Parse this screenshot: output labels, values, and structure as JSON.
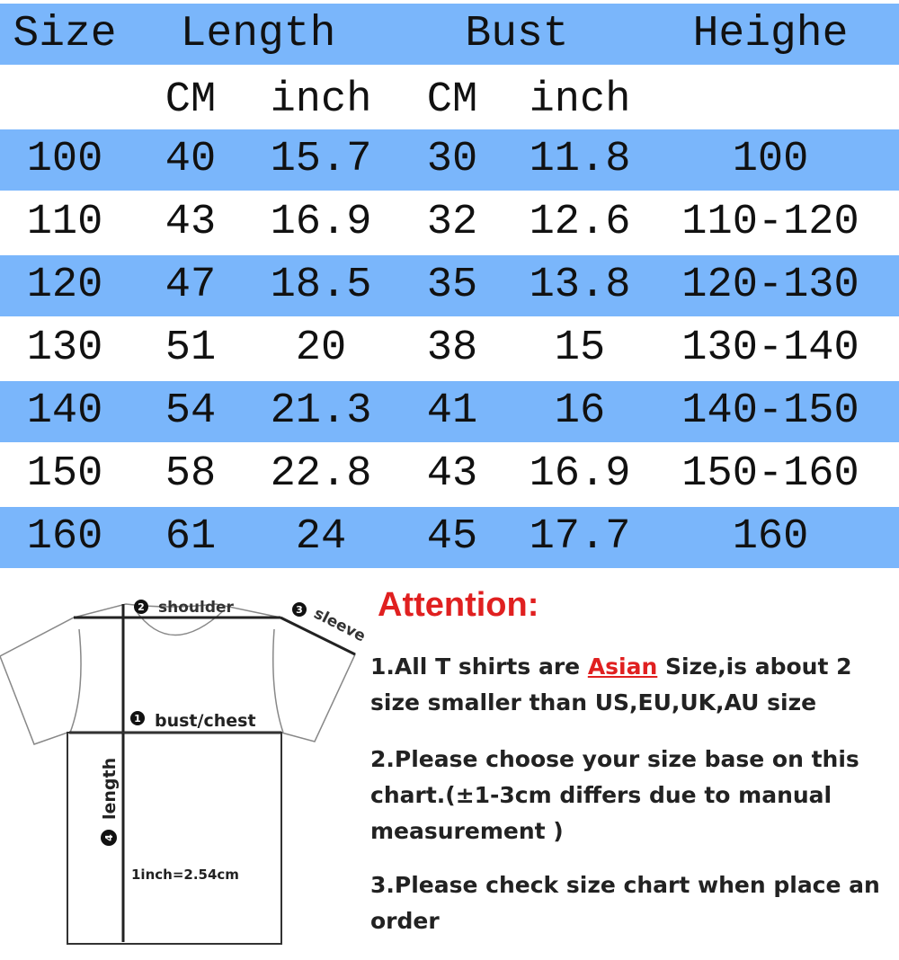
{
  "table": {
    "headers": [
      "Size",
      "Length",
      "Bust",
      "Heighe"
    ],
    "subheaders": [
      "CM",
      "inch",
      "CM",
      "inch"
    ],
    "rows": [
      [
        "100",
        "40",
        "15.7",
        "30",
        "11.8",
        "100"
      ],
      [
        "110",
        "43",
        "16.9",
        "32",
        "12.6",
        "110-120"
      ],
      [
        "120",
        "47",
        "18.5",
        "35",
        "13.8",
        "120-130"
      ],
      [
        "130",
        "51",
        "20",
        "38",
        "15",
        "130-140"
      ],
      [
        "140",
        "54",
        "21.3",
        "41",
        "16",
        "140-150"
      ],
      [
        "150",
        "58",
        "22.8",
        "43",
        "16.9",
        "150-160"
      ],
      [
        "160",
        "61",
        "24",
        "45",
        "17.7",
        "160"
      ]
    ],
    "band_color": "#7ab6fb"
  },
  "diagram": {
    "shoulder": "shoulder",
    "sleeve": "sleeve",
    "bust": "bust/chest",
    "length": "length",
    "conversion": "1inch=2.54cm",
    "n1": "1",
    "n2": "2",
    "n3": "3",
    "n4": "4"
  },
  "attention": {
    "title": "Attention:",
    "note1_a": "1.All T shirts are ",
    "note1_asian": "Asian",
    "note1_b": " Size,is about 2 size smaller than US,EU,UK,AU size",
    "note2": "2.Please choose your size base on this chart.(±1-3cm differs due to manual measurement )",
    "note3": "3.Please check size chart when place an order",
    "accent": "#e02020"
  }
}
